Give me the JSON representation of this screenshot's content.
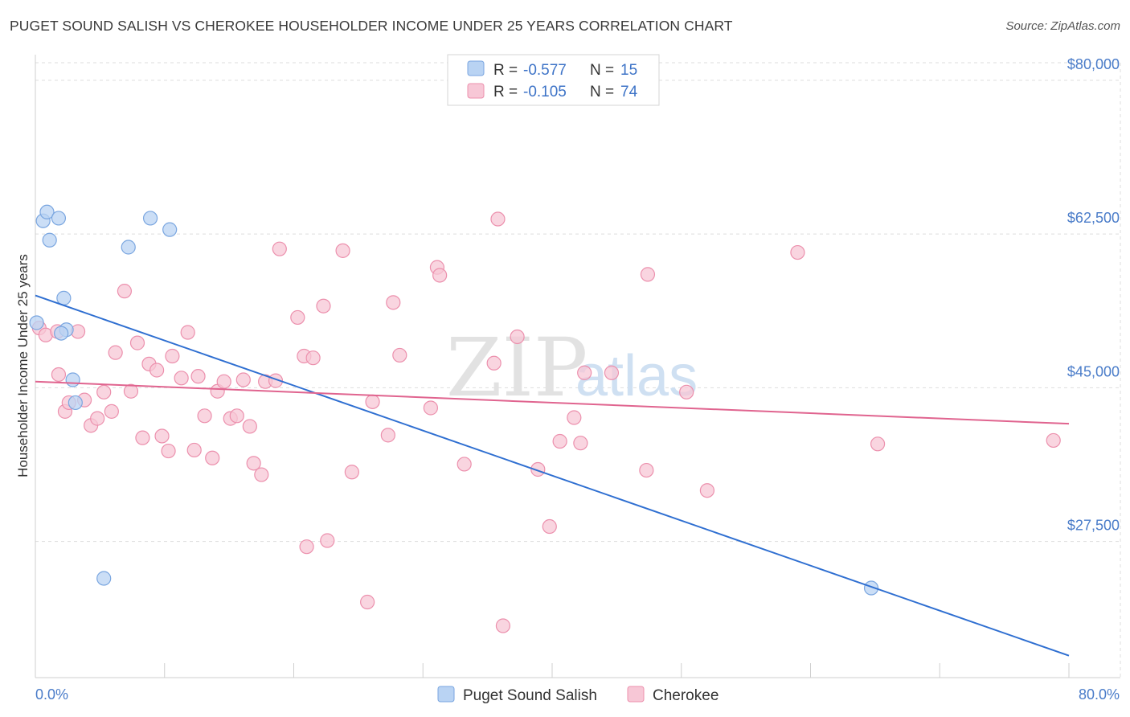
{
  "title": "PUGET SOUND SALISH VS CHEROKEE HOUSEHOLDER INCOME UNDER 25 YEARS CORRELATION CHART",
  "source": "Source: ZipAtlas.com",
  "watermark": {
    "zip": "ZIP",
    "atlas": "atlas"
  },
  "colors": {
    "blue_fill": "#b9d3f3",
    "blue_stroke": "#7aa6e0",
    "blue_line": "#2f6fd1",
    "pink_fill": "#f7c7d6",
    "pink_stroke": "#ec90ad",
    "pink_line": "#e0648f",
    "grid": "#dddddd",
    "tick_label": "#4a7cc9"
  },
  "legend": {
    "rows": [
      {
        "r_label": "R = ",
        "r_value": "-0.577",
        "n_label": "N = ",
        "n_value": "15"
      },
      {
        "r_label": "R = ",
        "r_value": "-0.105",
        "n_label": "N = ",
        "n_value": "74"
      }
    ]
  },
  "chart_data": {
    "type": "scatter",
    "title": "PUGET SOUND SALISH VS CHEROKEE HOUSEHOLDER INCOME UNDER 25 YEARS CORRELATION CHART",
    "xlabel": "",
    "ylabel": "Householder Income Under 25 years",
    "xlim": [
      0,
      80
    ],
    "ylim": [
      12000,
      82000
    ],
    "x_tick_labels": [
      "0.0%",
      "80.0%"
    ],
    "y_ticks": [
      27500,
      45000,
      62500,
      80000
    ],
    "y_tick_labels": [
      "$27,500",
      "$45,000",
      "$62,500",
      "$80,000"
    ],
    "grid": true,
    "legend_position": "bottom",
    "series": [
      {
        "name": "Puget Sound Salish",
        "color": "#b9d3f3",
        "points": [
          {
            "x": 0.1,
            "y": 52400
          },
          {
            "x": 0.6,
            "y": 64000
          },
          {
            "x": 0.9,
            "y": 65000
          },
          {
            "x": 1.1,
            "y": 61800
          },
          {
            "x": 1.8,
            "y": 64300
          },
          {
            "x": 2.2,
            "y": 55200
          },
          {
            "x": 2.4,
            "y": 51600
          },
          {
            "x": 2.0,
            "y": 51200
          },
          {
            "x": 2.9,
            "y": 45900
          },
          {
            "x": 3.1,
            "y": 43300
          },
          {
            "x": 5.3,
            "y": 23300
          },
          {
            "x": 7.2,
            "y": 61000
          },
          {
            "x": 8.9,
            "y": 64300
          },
          {
            "x": 10.4,
            "y": 63000
          },
          {
            "x": 64.7,
            "y": 22200
          }
        ],
        "trend": {
          "x": [
            0,
            80
          ],
          "y": [
            55500,
            14500
          ]
        }
      },
      {
        "name": "Cherokee",
        "color": "#f7c7d6",
        "points": [
          {
            "x": 0.3,
            "y": 51800
          },
          {
            "x": 0.8,
            "y": 51000
          },
          {
            "x": 1.7,
            "y": 51400
          },
          {
            "x": 3.3,
            "y": 51400
          },
          {
            "x": 1.8,
            "y": 46500
          },
          {
            "x": 2.3,
            "y": 42300
          },
          {
            "x": 2.6,
            "y": 43300
          },
          {
            "x": 3.8,
            "y": 43600
          },
          {
            "x": 4.3,
            "y": 40700
          },
          {
            "x": 4.8,
            "y": 41500
          },
          {
            "x": 5.3,
            "y": 44500
          },
          {
            "x": 5.9,
            "y": 42300
          },
          {
            "x": 6.2,
            "y": 49000
          },
          {
            "x": 6.9,
            "y": 56000
          },
          {
            "x": 7.4,
            "y": 44600
          },
          {
            "x": 7.9,
            "y": 50100
          },
          {
            "x": 8.3,
            "y": 39300
          },
          {
            "x": 8.8,
            "y": 47700
          },
          {
            "x": 9.4,
            "y": 47000
          },
          {
            "x": 9.8,
            "y": 39500
          },
          {
            "x": 10.3,
            "y": 37800
          },
          {
            "x": 10.6,
            "y": 48600
          },
          {
            "x": 11.3,
            "y": 46100
          },
          {
            "x": 11.8,
            "y": 51300
          },
          {
            "x": 12.3,
            "y": 37900
          },
          {
            "x": 12.6,
            "y": 46300
          },
          {
            "x": 13.1,
            "y": 41800
          },
          {
            "x": 13.7,
            "y": 37000
          },
          {
            "x": 14.1,
            "y": 44600
          },
          {
            "x": 14.6,
            "y": 45700
          },
          {
            "x": 15.1,
            "y": 41500
          },
          {
            "x": 15.6,
            "y": 41800
          },
          {
            "x": 16.1,
            "y": 45900
          },
          {
            "x": 16.6,
            "y": 40600
          },
          {
            "x": 16.9,
            "y": 36400
          },
          {
            "x": 17.5,
            "y": 35100
          },
          {
            "x": 17.8,
            "y": 45700
          },
          {
            "x": 18.6,
            "y": 45800
          },
          {
            "x": 18.9,
            "y": 60800
          },
          {
            "x": 20.3,
            "y": 53000
          },
          {
            "x": 20.8,
            "y": 48600
          },
          {
            "x": 21.5,
            "y": 48400
          },
          {
            "x": 22.3,
            "y": 54300
          },
          {
            "x": 21.0,
            "y": 26900
          },
          {
            "x": 22.6,
            "y": 27600
          },
          {
            "x": 23.8,
            "y": 60600
          },
          {
            "x": 24.5,
            "y": 35400
          },
          {
            "x": 25.7,
            "y": 20600
          },
          {
            "x": 26.1,
            "y": 43400
          },
          {
            "x": 27.3,
            "y": 39600
          },
          {
            "x": 27.7,
            "y": 54700
          },
          {
            "x": 28.2,
            "y": 48700
          },
          {
            "x": 30.6,
            "y": 42700
          },
          {
            "x": 31.1,
            "y": 58700
          },
          {
            "x": 31.3,
            "y": 57800
          },
          {
            "x": 33.2,
            "y": 36300
          },
          {
            "x": 35.5,
            "y": 47800
          },
          {
            "x": 35.8,
            "y": 64200
          },
          {
            "x": 36.2,
            "y": 17900
          },
          {
            "x": 37.3,
            "y": 50800
          },
          {
            "x": 38.9,
            "y": 35700
          },
          {
            "x": 39.8,
            "y": 29200
          },
          {
            "x": 40.6,
            "y": 38900
          },
          {
            "x": 41.7,
            "y": 41600
          },
          {
            "x": 42.2,
            "y": 38700
          },
          {
            "x": 42.5,
            "y": 46700
          },
          {
            "x": 44.6,
            "y": 46700
          },
          {
            "x": 47.3,
            "y": 35600
          },
          {
            "x": 47.4,
            "y": 57900
          },
          {
            "x": 50.4,
            "y": 44500
          },
          {
            "x": 52.0,
            "y": 33300
          },
          {
            "x": 59.0,
            "y": 60400
          },
          {
            "x": 65.2,
            "y": 38600
          },
          {
            "x": 78.8,
            "y": 39000
          }
        ],
        "trend": {
          "x": [
            0,
            80
          ],
          "y": [
            45700,
            40900
          ]
        }
      }
    ]
  }
}
